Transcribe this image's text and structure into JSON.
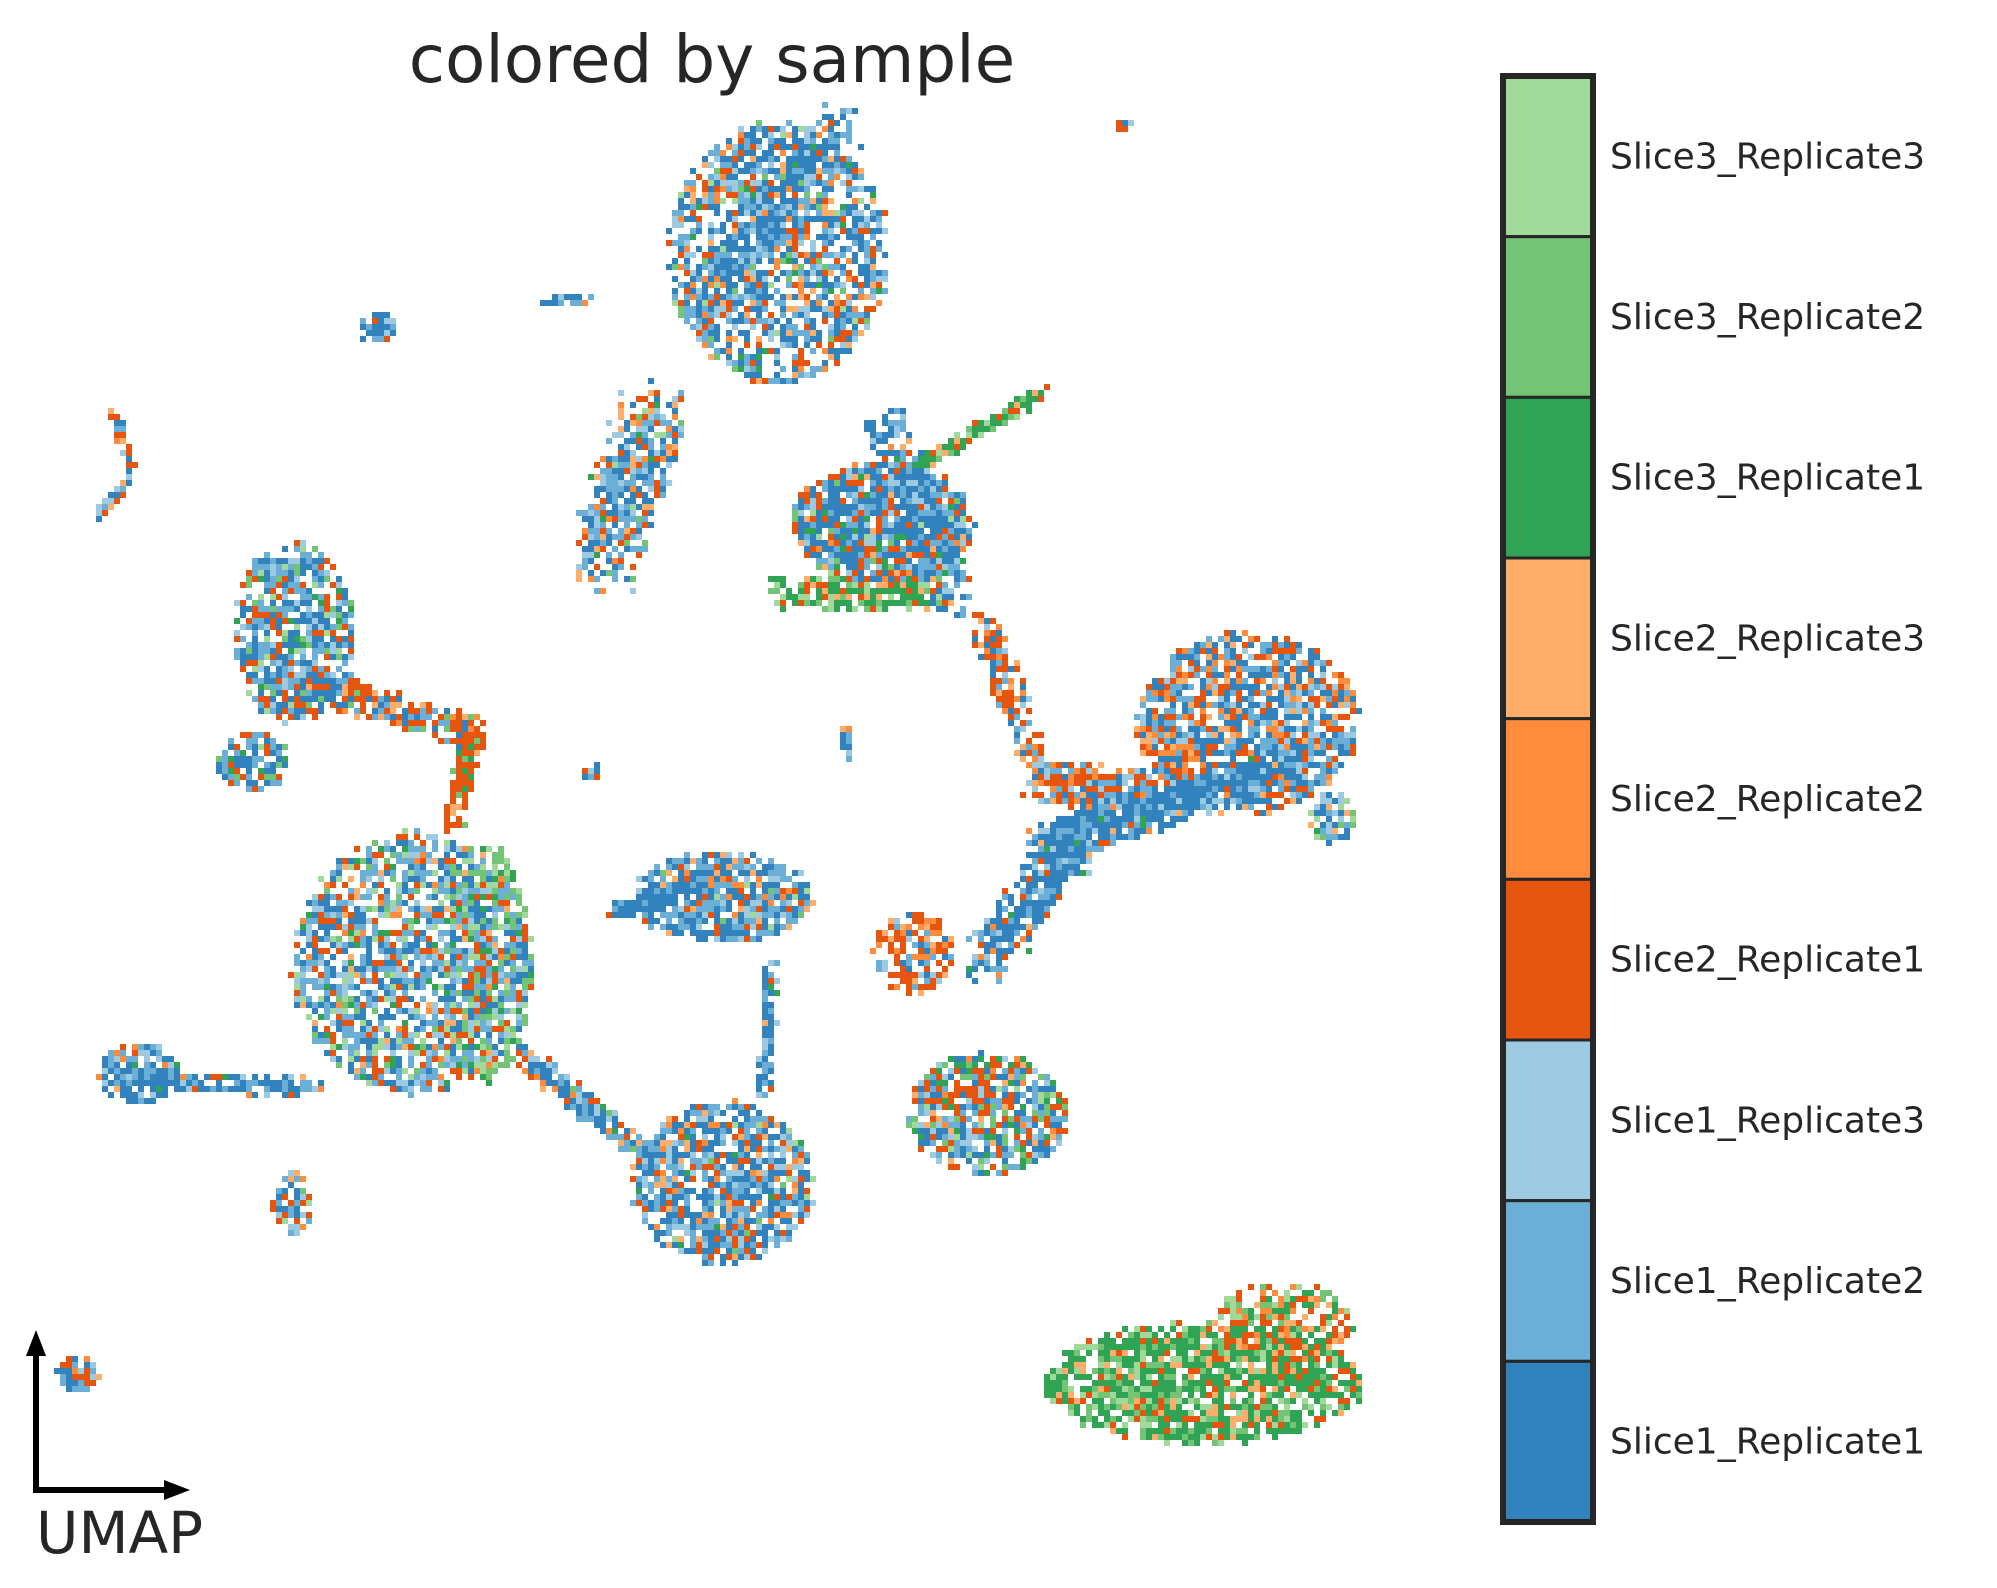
{
  "chart_data": {
    "type": "scatter",
    "title": "colored by sample",
    "embedding_label": "UMAP",
    "xlabel": "",
    "ylabel": "",
    "grid": false,
    "legend": "right (colorbar-style)",
    "categories": [
      "Slice3_Replicate3",
      "Slice3_Replicate2",
      "Slice3_Replicate1",
      "Slice2_Replicate3",
      "Slice2_Replicate2",
      "Slice2_Replicate1",
      "Slice1_Replicate3",
      "Slice1_Replicate2",
      "Slice1_Replicate1"
    ],
    "colors": {
      "Slice3_Replicate3": "#a1d99b",
      "Slice3_Replicate2": "#74c476",
      "Slice3_Replicate1": "#31a354",
      "Slice2_Replicate3": "#fdae6b",
      "Slice2_Replicate2": "#fd8d3c",
      "Slice2_Replicate1": "#e6550d",
      "Slice1_Replicate3": "#9ecae1",
      "Slice1_Replicate2": "#6baed6",
      "Slice1_Replicate1": "#3182bd"
    }
  }
}
